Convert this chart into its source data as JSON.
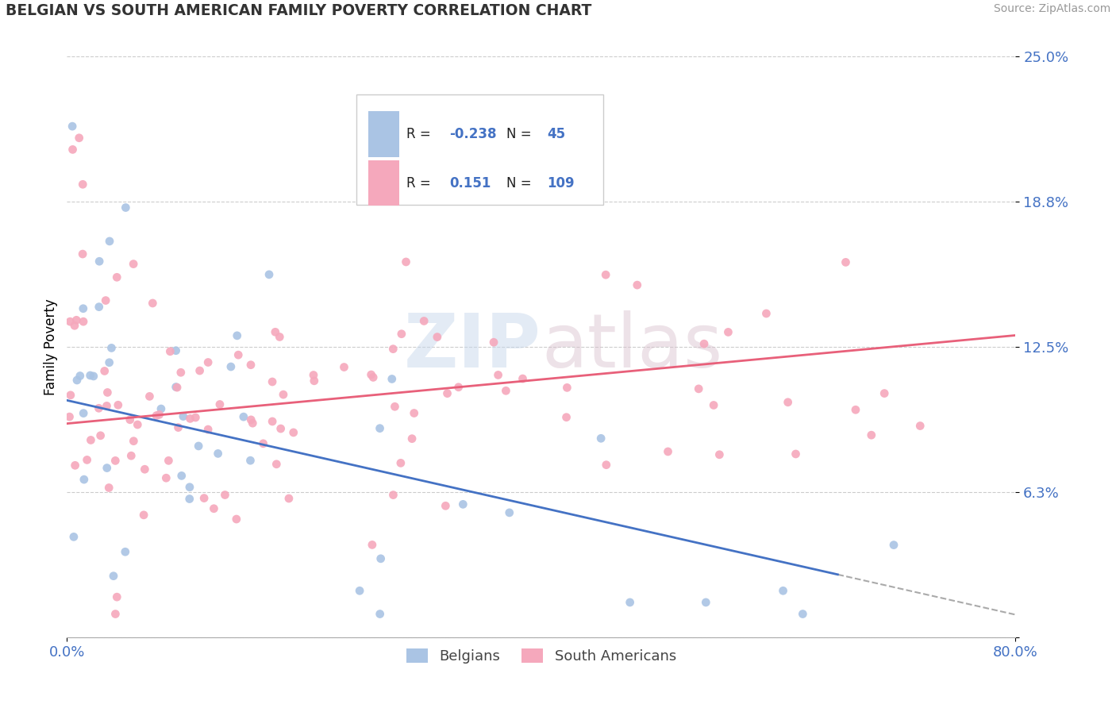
{
  "title": "BELGIAN VS SOUTH AMERICAN FAMILY POVERTY CORRELATION CHART",
  "source": "Source: ZipAtlas.com",
  "ylabel": "Family Poverty",
  "xlim": [
    0.0,
    0.8
  ],
  "ylim": [
    0.0,
    0.25
  ],
  "ytick_vals": [
    0.0,
    0.0625,
    0.125,
    0.1875,
    0.25
  ],
  "ytick_labels": [
    "",
    "6.3%",
    "12.5%",
    "18.8%",
    "25.0%"
  ],
  "xticks": [
    0.0,
    0.8
  ],
  "xtick_labels": [
    "0.0%",
    "80.0%"
  ],
  "color_bel": "#aac4e4",
  "color_sa": "#f5a8bc",
  "color_line_bel": "#4472c4",
  "color_line_sa": "#e8607a",
  "color_blue_text": "#4472c4",
  "bel_line_x0": 0.0,
  "bel_line_y0": 0.102,
  "bel_line_x1": 0.65,
  "bel_line_y1": 0.027,
  "sa_line_x0": 0.0,
  "sa_line_y0": 0.092,
  "sa_line_x1": 0.8,
  "sa_line_y1": 0.13
}
